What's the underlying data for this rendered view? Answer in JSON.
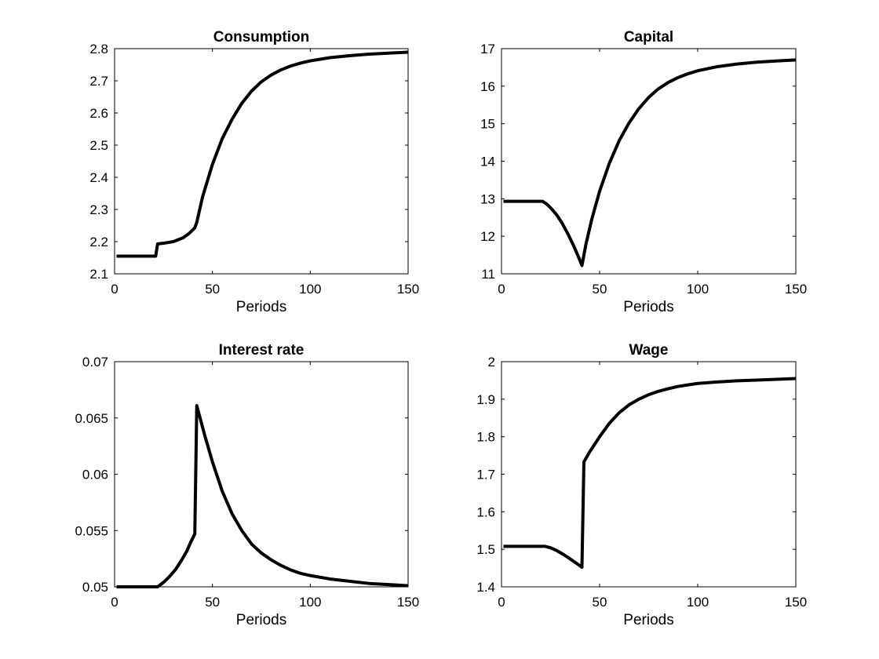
{
  "figure": {
    "background": "#ffffff",
    "line_color": "#000000"
  },
  "chart_data": [
    {
      "type": "line",
      "title": "Consumption",
      "xlabel": "Periods",
      "ylabel": "",
      "xlim": [
        0,
        150
      ],
      "ylim": [
        2.1,
        2.8
      ],
      "xticks": [
        0,
        50,
        100,
        150
      ],
      "xtick_labels": [
        "0",
        "50",
        "100",
        "150"
      ],
      "yticks": [
        2.1,
        2.2,
        2.3,
        2.4,
        2.5,
        2.6,
        2.7,
        2.8
      ],
      "ytick_labels": [
        "2.1",
        "2.2",
        "2.3",
        "2.4",
        "2.5",
        "2.6",
        "2.7",
        "2.8"
      ],
      "grid": false,
      "series": [
        {
          "color": "#000000",
          "x": [
            1,
            20,
            21,
            22,
            25,
            30,
            35,
            38,
            41,
            42,
            45,
            50,
            55,
            60,
            65,
            70,
            75,
            80,
            85,
            90,
            95,
            100,
            110,
            120,
            130,
            140,
            150
          ],
          "y": [
            2.155,
            2.155,
            2.155,
            2.193,
            2.195,
            2.2,
            2.212,
            2.225,
            2.243,
            2.26,
            2.34,
            2.44,
            2.52,
            2.58,
            2.63,
            2.668,
            2.697,
            2.718,
            2.734,
            2.746,
            2.755,
            2.762,
            2.772,
            2.778,
            2.783,
            2.786,
            2.789
          ]
        }
      ]
    },
    {
      "type": "line",
      "title": "Capital",
      "xlabel": "Periods",
      "ylabel": "",
      "xlim": [
        0,
        150
      ],
      "ylim": [
        11,
        17
      ],
      "xticks": [
        0,
        50,
        100,
        150
      ],
      "xtick_labels": [
        "0",
        "50",
        "100",
        "150"
      ],
      "yticks": [
        11,
        12,
        13,
        14,
        15,
        16,
        17
      ],
      "ytick_labels": [
        "11",
        "12",
        "13",
        "14",
        "15",
        "16",
        "17"
      ],
      "grid": false,
      "series": [
        {
          "color": "#000000",
          "x": [
            1,
            21,
            23,
            25,
            28,
            31,
            34,
            37,
            39,
            41,
            43,
            46,
            50,
            55,
            60,
            65,
            70,
            75,
            80,
            85,
            90,
            95,
            100,
            110,
            120,
            130,
            140,
            150
          ],
          "y": [
            12.93,
            12.93,
            12.86,
            12.76,
            12.58,
            12.34,
            12.05,
            11.72,
            11.48,
            11.22,
            11.78,
            12.45,
            13.2,
            13.95,
            14.55,
            15.02,
            15.4,
            15.7,
            15.93,
            16.1,
            16.23,
            16.33,
            16.41,
            16.52,
            16.59,
            16.64,
            16.67,
            16.7
          ]
        }
      ]
    },
    {
      "type": "line",
      "title": "Interest rate",
      "xlabel": "Periods",
      "ylabel": "",
      "xlim": [
        0,
        150
      ],
      "ylim": [
        0.05,
        0.07
      ],
      "xticks": [
        0,
        50,
        100,
        150
      ],
      "xtick_labels": [
        "0",
        "50",
        "100",
        "150"
      ],
      "yticks": [
        0.05,
        0.055,
        0.06,
        0.065,
        0.07
      ],
      "ytick_labels": [
        "0.05",
        "0.055",
        "0.06",
        "0.065",
        "0.07"
      ],
      "grid": false,
      "series": [
        {
          "color": "#000000",
          "x": [
            1,
            22,
            25,
            28,
            31,
            34,
            37,
            39,
            41,
            42,
            44,
            46,
            50,
            55,
            60,
            65,
            70,
            75,
            80,
            85,
            90,
            95,
            100,
            110,
            120,
            130,
            140,
            150
          ],
          "y": [
            0.05,
            0.05,
            0.0504,
            0.0509,
            0.0515,
            0.0523,
            0.0532,
            0.054,
            0.0547,
            0.0661,
            0.0648,
            0.0635,
            0.0611,
            0.0585,
            0.0565,
            0.055,
            0.0538,
            0.053,
            0.0524,
            0.0519,
            0.0515,
            0.0512,
            0.051,
            0.0507,
            0.0505,
            0.0503,
            0.0502,
            0.0501
          ]
        }
      ]
    },
    {
      "type": "line",
      "title": "Wage",
      "xlabel": "Periods",
      "ylabel": "",
      "xlim": [
        0,
        150
      ],
      "ylim": [
        1.4,
        2
      ],
      "xticks": [
        0,
        50,
        100,
        150
      ],
      "xtick_labels": [
        "0",
        "50",
        "100",
        "150"
      ],
      "yticks": [
        1.4,
        1.5,
        1.6,
        1.7,
        1.8,
        1.9,
        2
      ],
      "ytick_labels": [
        "1.4",
        "1.5",
        "1.6",
        "1.7",
        "1.8",
        "1.9",
        "2"
      ],
      "grid": false,
      "series": [
        {
          "color": "#000000",
          "x": [
            1,
            22,
            25,
            28,
            31,
            34,
            37,
            39,
            41,
            42,
            45,
            50,
            55,
            60,
            65,
            70,
            75,
            80,
            85,
            90,
            95,
            100,
            110,
            120,
            130,
            140,
            150
          ],
          "y": [
            1.508,
            1.508,
            1.504,
            1.497,
            1.488,
            1.478,
            1.467,
            1.46,
            1.452,
            1.733,
            1.76,
            1.8,
            1.836,
            1.864,
            1.885,
            1.9,
            1.912,
            1.921,
            1.928,
            1.934,
            1.938,
            1.942,
            1.946,
            1.949,
            1.951,
            1.953,
            1.955
          ]
        }
      ]
    }
  ]
}
